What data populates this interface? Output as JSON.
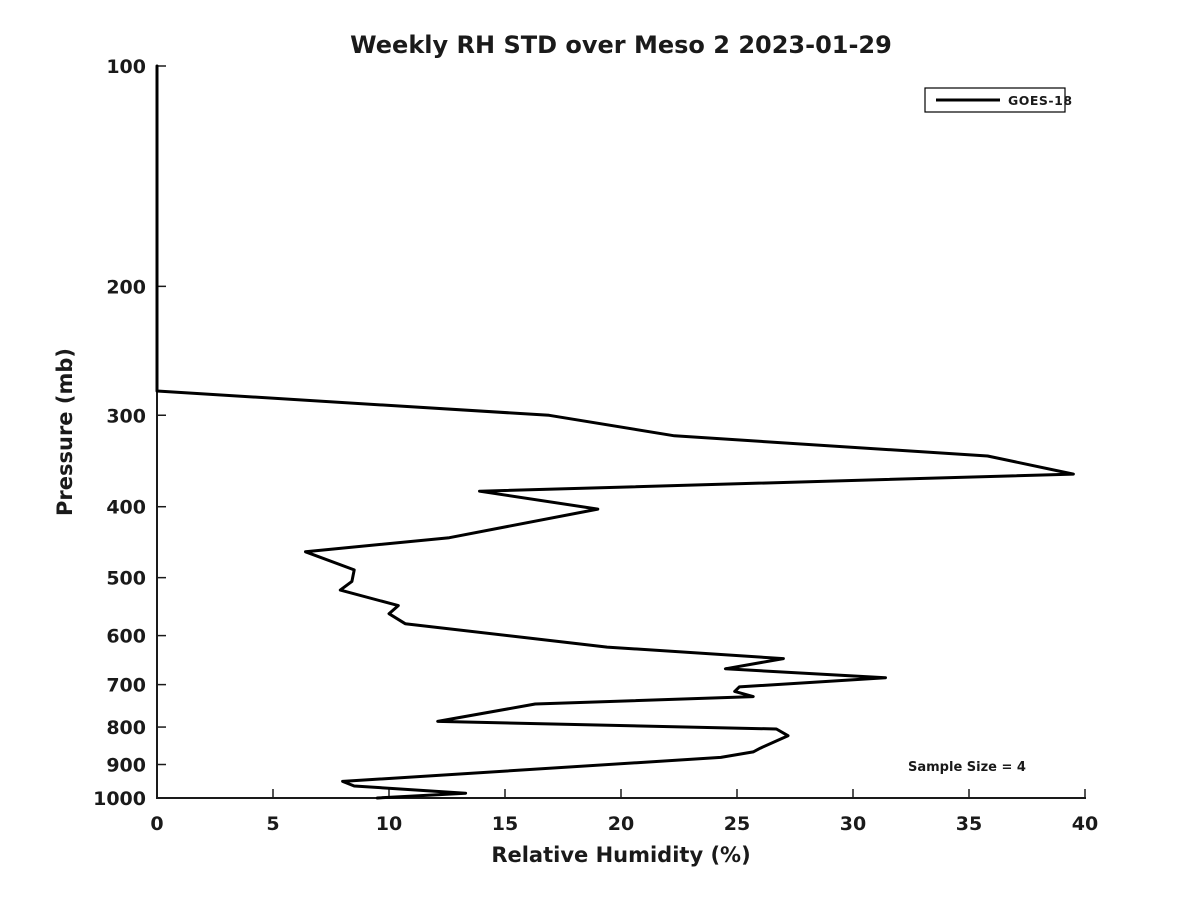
{
  "figure": {
    "background_color": "#ffffff",
    "axis_color": "#1a1a1a",
    "line_color": "#000000"
  },
  "chart_data": {
    "type": "line",
    "title": "Weekly RH STD over Meso 2 2023-01-29",
    "xlabel": "Relative Humidity (%)",
    "ylabel": "Pressure (mb)",
    "xlim": [
      0,
      40
    ],
    "ylim": [
      100,
      1000
    ],
    "yscale": "log",
    "y_axis_inverted": true,
    "grid": false,
    "x_ticks": [
      0,
      5,
      10,
      15,
      20,
      25,
      30,
      35,
      40
    ],
    "y_ticks": [
      100,
      200,
      300,
      400,
      500,
      600,
      700,
      800,
      900,
      1000
    ],
    "legend": {
      "position": "upper right",
      "entries": [
        {
          "label": "GOES-18",
          "color": "#000000",
          "linewidth": 3
        }
      ]
    },
    "annotation": {
      "text": "Sample Size = 4"
    },
    "series": [
      {
        "name": "GOES-18",
        "color": "#000000",
        "points_rh_pressure": [
          [
            0.0,
            100
          ],
          [
            0.0,
            278
          ],
          [
            16.9,
            300
          ],
          [
            22.3,
            320
          ],
          [
            35.8,
            341
          ],
          [
            39.5,
            361
          ],
          [
            13.9,
            381
          ],
          [
            19.0,
            403
          ],
          [
            12.6,
            441
          ],
          [
            6.4,
            461
          ],
          [
            8.5,
            488
          ],
          [
            8.4,
            506
          ],
          [
            7.9,
            520
          ],
          [
            10.4,
            546
          ],
          [
            10.0,
            560
          ],
          [
            10.7,
            578
          ],
          [
            19.4,
            622
          ],
          [
            27.0,
            645
          ],
          [
            24.5,
            666
          ],
          [
            31.4,
            685
          ],
          [
            25.1,
            705
          ],
          [
            24.9,
            715
          ],
          [
            25.7,
            727
          ],
          [
            16.3,
            744
          ],
          [
            12.1,
            786
          ],
          [
            26.7,
            805
          ],
          [
            27.2,
            822
          ],
          [
            26.0,
            855
          ],
          [
            25.7,
            865
          ],
          [
            24.3,
            880
          ],
          [
            8.0,
            949
          ],
          [
            8.5,
            963
          ],
          [
            13.3,
            985
          ],
          [
            9.5,
            1000
          ]
        ]
      }
    ]
  }
}
